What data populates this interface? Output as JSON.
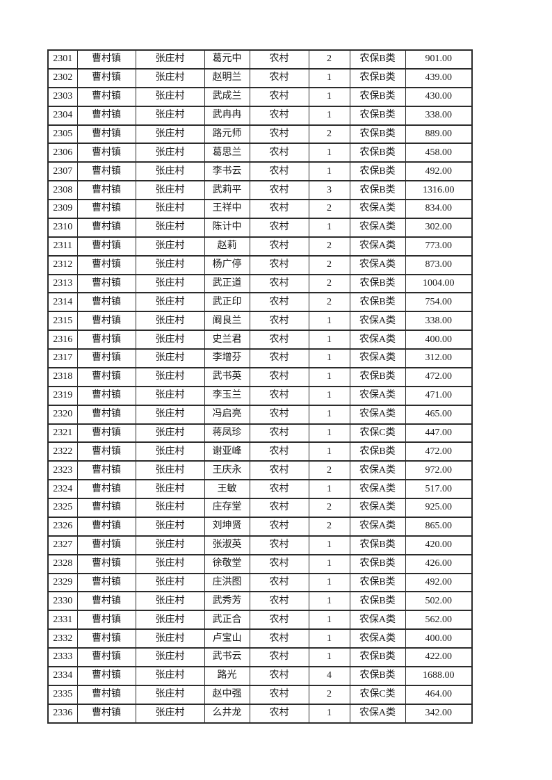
{
  "colors": {
    "page_bg": "#ffffff",
    "border": "#2b2b2b",
    "text": "#1a1a1a"
  },
  "table": {
    "rows": [
      [
        "2301",
        "曹村镇",
        "张庄村",
        "葛元中",
        "农村",
        "2",
        "农保B类",
        "901.00"
      ],
      [
        "2302",
        "曹村镇",
        "张庄村",
        "赵明兰",
        "农村",
        "1",
        "农保B类",
        "439.00"
      ],
      [
        "2303",
        "曹村镇",
        "张庄村",
        "武成兰",
        "农村",
        "1",
        "农保B类",
        "430.00"
      ],
      [
        "2304",
        "曹村镇",
        "张庄村",
        "武冉冉",
        "农村",
        "1",
        "农保B类",
        "338.00"
      ],
      [
        "2305",
        "曹村镇",
        "张庄村",
        "路元师",
        "农村",
        "2",
        "农保B类",
        "889.00"
      ],
      [
        "2306",
        "曹村镇",
        "张庄村",
        "葛思兰",
        "农村",
        "1",
        "农保B类",
        "458.00"
      ],
      [
        "2307",
        "曹村镇",
        "张庄村",
        "李书云",
        "农村",
        "1",
        "农保B类",
        "492.00"
      ],
      [
        "2308",
        "曹村镇",
        "张庄村",
        "武莉平",
        "农村",
        "3",
        "农保B类",
        "1316.00"
      ],
      [
        "2309",
        "曹村镇",
        "张庄村",
        "王祥中",
        "农村",
        "2",
        "农保A类",
        "834.00"
      ],
      [
        "2310",
        "曹村镇",
        "张庄村",
        "陈计中",
        "农村",
        "1",
        "农保A类",
        "302.00"
      ],
      [
        "2311",
        "曹村镇",
        "张庄村",
        "赵莉",
        "农村",
        "2",
        "农保A类",
        "773.00"
      ],
      [
        "2312",
        "曹村镇",
        "张庄村",
        "杨广停",
        "农村",
        "2",
        "农保A类",
        "873.00"
      ],
      [
        "2313",
        "曹村镇",
        "张庄村",
        "武正道",
        "农村",
        "2",
        "农保B类",
        "1004.00"
      ],
      [
        "2314",
        "曹村镇",
        "张庄村",
        "武正印",
        "农村",
        "2",
        "农保B类",
        "754.00"
      ],
      [
        "2315",
        "曹村镇",
        "张庄村",
        "阚良兰",
        "农村",
        "1",
        "农保A类",
        "338.00"
      ],
      [
        "2316",
        "曹村镇",
        "张庄村",
        "史兰君",
        "农村",
        "1",
        "农保A类",
        "400.00"
      ],
      [
        "2317",
        "曹村镇",
        "张庄村",
        "李增芬",
        "农村",
        "1",
        "农保A类",
        "312.00"
      ],
      [
        "2318",
        "曹村镇",
        "张庄村",
        "武书英",
        "农村",
        "1",
        "农保B类",
        "472.00"
      ],
      [
        "2319",
        "曹村镇",
        "张庄村",
        "李玉兰",
        "农村",
        "1",
        "农保A类",
        "471.00"
      ],
      [
        "2320",
        "曹村镇",
        "张庄村",
        "冯启亮",
        "农村",
        "1",
        "农保A类",
        "465.00"
      ],
      [
        "2321",
        "曹村镇",
        "张庄村",
        "蒋凤珍",
        "农村",
        "1",
        "农保C类",
        "447.00"
      ],
      [
        "2322",
        "曹村镇",
        "张庄村",
        "谢亚峰",
        "农村",
        "1",
        "农保B类",
        "472.00"
      ],
      [
        "2323",
        "曹村镇",
        "张庄村",
        "王庆永",
        "农村",
        "2",
        "农保A类",
        "972.00"
      ],
      [
        "2324",
        "曹村镇",
        "张庄村",
        "王敏",
        "农村",
        "1",
        "农保A类",
        "517.00"
      ],
      [
        "2325",
        "曹村镇",
        "张庄村",
        "庄存堂",
        "农村",
        "2",
        "农保A类",
        "925.00"
      ],
      [
        "2326",
        "曹村镇",
        "张庄村",
        "刘坤贤",
        "农村",
        "2",
        "农保A类",
        "865.00"
      ],
      [
        "2327",
        "曹村镇",
        "张庄村",
        "张淑英",
        "农村",
        "1",
        "农保B类",
        "420.00"
      ],
      [
        "2328",
        "曹村镇",
        "张庄村",
        "徐敬堂",
        "农村",
        "1",
        "农保B类",
        "426.00"
      ],
      [
        "2329",
        "曹村镇",
        "张庄村",
        "庄洪图",
        "农村",
        "1",
        "农保B类",
        "492.00"
      ],
      [
        "2330",
        "曹村镇",
        "张庄村",
        "武秀芳",
        "农村",
        "1",
        "农保B类",
        "502.00"
      ],
      [
        "2331",
        "曹村镇",
        "张庄村",
        "武正合",
        "农村",
        "1",
        "农保A类",
        "562.00"
      ],
      [
        "2332",
        "曹村镇",
        "张庄村",
        "卢宝山",
        "农村",
        "1",
        "农保A类",
        "400.00"
      ],
      [
        "2333",
        "曹村镇",
        "张庄村",
        "武书云",
        "农村",
        "1",
        "农保B类",
        "422.00"
      ],
      [
        "2334",
        "曹村镇",
        "张庄村",
        "路光",
        "农村",
        "4",
        "农保B类",
        "1688.00"
      ],
      [
        "2335",
        "曹村镇",
        "张庄村",
        "赵中强",
        "农村",
        "2",
        "农保C类",
        "464.00"
      ],
      [
        "2336",
        "曹村镇",
        "张庄村",
        "么井龙",
        "农村",
        "1",
        "农保A类",
        "342.00"
      ]
    ]
  }
}
